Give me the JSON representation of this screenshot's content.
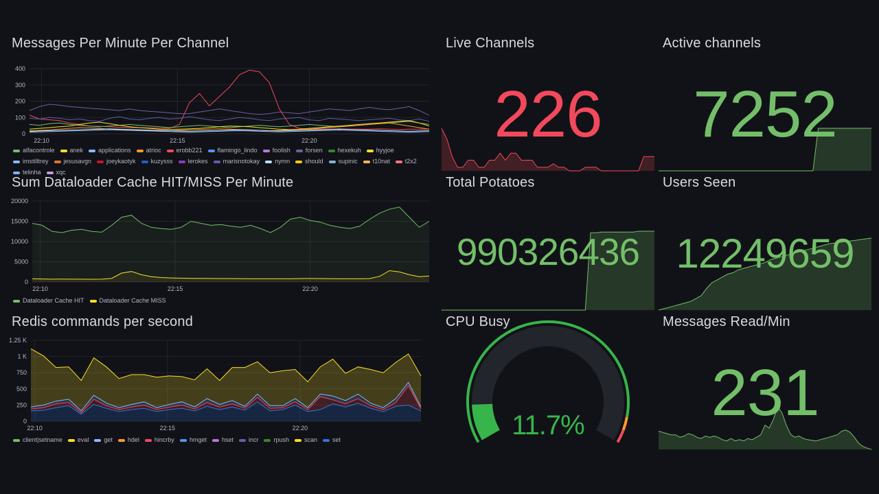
{
  "colors": {
    "background": "#111217",
    "grid": "#2a2c33",
    "red": "#f2495c",
    "green": "#73bf69",
    "yellow": "#fade2a",
    "orange": "#ff9830"
  },
  "panels": {
    "messages": {
      "title": "Messages Per Minute Per Channel",
      "legend": [
        {
          "name": "alfacontrole",
          "color": "#73bf69"
        },
        {
          "name": "anek",
          "color": "#fade2a"
        },
        {
          "name": "applications",
          "color": "#8ab8ff"
        },
        {
          "name": "atrioc",
          "color": "#ff9830"
        },
        {
          "name": "erobb221",
          "color": "#f2495c"
        },
        {
          "name": "flamingo_lindo",
          "color": "#5794f2"
        },
        {
          "name": "foolish",
          "color": "#b877d9"
        },
        {
          "name": "forsen",
          "color": "#705da0"
        },
        {
          "name": "hexekuh",
          "color": "#37872d"
        },
        {
          "name": "hyyjoe",
          "color": "#fade2a"
        },
        {
          "name": "imstilltrey",
          "color": "#8ab8ff"
        },
        {
          "name": "jesusavgn",
          "color": "#e0752d"
        },
        {
          "name": "joeykaotyk",
          "color": "#c4162a"
        },
        {
          "name": "kuzysss",
          "color": "#1f60c4"
        },
        {
          "name": "lerokes",
          "color": "#8f3bb8"
        },
        {
          "name": "marisnotokay",
          "color": "#5d5da8"
        },
        {
          "name": "nymn",
          "color": "#badff4"
        },
        {
          "name": "should",
          "color": "#f2cc0c"
        },
        {
          "name": "supinic",
          "color": "#7eb8d4"
        },
        {
          "name": "t10nat",
          "color": "#ffb357"
        },
        {
          "name": "t2x2",
          "color": "#ff7383"
        },
        {
          "name": "telinha",
          "color": "#73b9ff"
        },
        {
          "name": "xqc",
          "color": "#ca95e5"
        }
      ]
    },
    "dataloader": {
      "title": "Sum Dataloader Cache HIT/MISS Per Minute",
      "legend": [
        {
          "name": "Dataloader Cache HIT",
          "color": "#73bf69"
        },
        {
          "name": "Dataloader Cache MISS",
          "color": "#fade2a"
        }
      ]
    },
    "redis": {
      "title": "Redis commands per second",
      "legend": [
        {
          "name": "client|setname",
          "color": "#73bf69"
        },
        {
          "name": "eval",
          "color": "#fade2a"
        },
        {
          "name": "get",
          "color": "#8ab8ff"
        },
        {
          "name": "hdel",
          "color": "#ff9830"
        },
        {
          "name": "hincrby",
          "color": "#f2495c"
        },
        {
          "name": "hmget",
          "color": "#5794f2"
        },
        {
          "name": "hset",
          "color": "#b877d9"
        },
        {
          "name": "incr",
          "color": "#705da0"
        },
        {
          "name": "rpush",
          "color": "#37872d"
        },
        {
          "name": "scan",
          "color": "#fade2a"
        },
        {
          "name": "set",
          "color": "#3274d9"
        }
      ]
    },
    "live_channels": {
      "title": "Live Channels",
      "value": "226",
      "color": "#f2495c"
    },
    "active_channels": {
      "title": "Active channels",
      "value": "7252",
      "color": "#73bf69"
    },
    "total_potatoes": {
      "title": "Total Potatoes",
      "value": "990326436",
      "color": "#73bf69"
    },
    "users_seen": {
      "title": "Users Seen",
      "value": "12249659",
      "color": "#73bf69"
    },
    "cpu_busy": {
      "title": "CPU Busy",
      "value": "11.7%",
      "percent": 11.7,
      "color": "#37b54a"
    },
    "messages_read": {
      "title": "Messages Read/Min",
      "value": "231",
      "color": "#73bf69"
    }
  },
  "chart_data": [
    {
      "type": "line",
      "title": "Messages Per Minute Per Channel",
      "x_ticks": [
        "22:10",
        "22:15",
        "22:20"
      ],
      "y_ticks": [
        "0",
        "100",
        "200",
        "300",
        "400"
      ],
      "ylim": [
        0,
        420
      ],
      "series": [
        {
          "name": "erobb221",
          "color": "#f2495c",
          "values": [
            120,
            95,
            90,
            85,
            70,
            60,
            50,
            48,
            45,
            42,
            40,
            40,
            38,
            36,
            35,
            60,
            200,
            260,
            180,
            240,
            300,
            380,
            410,
            400,
            330,
            160,
            60,
            35,
            30,
            30,
            30,
            32,
            30,
            30,
            30,
            32,
            30,
            28,
            30,
            30,
            30
          ]
        },
        {
          "name": "forsen",
          "color": "#705da0",
          "values": [
            150,
            175,
            190,
            185,
            175,
            170,
            165,
            160,
            155,
            150,
            160,
            150,
            145,
            140,
            135,
            130,
            130,
            140,
            150,
            160,
            150,
            140,
            130,
            125,
            130,
            140,
            135,
            130,
            140,
            150,
            160,
            155,
            150,
            160,
            170,
            160,
            155,
            165,
            175,
            150,
            120
          ]
        },
        {
          "name": "marisnotokay",
          "color": "#5d5da8",
          "values": [
            100,
            95,
            105,
            100,
            90,
            95,
            85,
            80,
            100,
            110,
            95,
            90,
            100,
            105,
            95,
            100,
            110,
            100,
            90,
            85,
            95,
            105,
            100,
            90,
            85,
            95,
            100,
            105,
            90,
            85,
            100,
            95,
            90,
            85,
            90,
            95,
            100,
            90,
            85,
            95,
            80
          ]
        },
        {
          "name": "alfacontrole",
          "color": "#73bf69",
          "values": [
            60,
            55,
            65,
            70,
            60,
            55,
            50,
            45,
            50,
            55,
            60,
            55,
            50,
            45,
            40,
            45,
            50,
            55,
            50,
            45,
            40,
            45,
            50,
            55,
            50,
            45,
            50,
            55,
            60,
            55,
            50,
            45,
            50,
            55,
            60,
            65,
            70,
            75,
            80,
            70,
            60
          ]
        },
        {
          "name": "anek",
          "color": "#fade2a",
          "values": [
            30,
            35,
            40,
            45,
            50,
            60,
            70,
            75,
            65,
            55,
            45,
            40,
            35,
            30,
            28,
            30,
            32,
            35,
            40,
            45,
            50,
            48,
            45,
            40,
            35,
            30,
            28,
            30,
            35,
            40,
            45,
            50,
            55,
            60,
            65,
            70,
            75,
            80,
            85,
            70,
            50
          ]
        },
        {
          "name": "atrioc",
          "color": "#ff9830",
          "values": [
            20,
            22,
            25,
            30,
            35,
            40,
            38,
            35,
            30,
            28,
            25,
            22,
            20,
            18,
            20,
            22,
            25,
            28,
            30,
            32,
            30,
            28,
            25,
            22,
            20,
            22,
            25,
            28,
            30,
            35,
            40,
            45,
            50,
            55,
            60,
            65,
            70,
            60,
            50,
            40,
            30
          ]
        },
        {
          "name": "applications",
          "color": "#8ab8ff",
          "values": [
            10,
            12,
            14,
            16,
            18,
            20,
            22,
            24,
            26,
            24,
            22,
            20,
            18,
            16,
            14,
            12,
            10,
            12,
            14,
            16,
            18,
            20,
            18,
            16,
            14,
            12,
            14,
            16,
            18,
            20,
            22,
            24,
            22,
            20,
            18,
            16,
            14,
            12,
            10,
            12,
            14
          ]
        },
        {
          "name": "nymn",
          "color": "#badff4",
          "values": [
            15,
            18,
            20,
            22,
            24,
            26,
            28,
            30,
            32,
            30,
            28,
            26,
            24,
            22,
            20,
            18,
            16,
            18,
            20,
            22,
            24,
            26,
            24,
            22,
            20,
            18,
            20,
            22,
            24,
            26,
            28,
            30,
            28,
            26,
            24,
            22,
            20,
            18,
            16,
            18,
            20
          ]
        }
      ]
    },
    {
      "type": "area",
      "title": "Sum Dataloader Cache HIT/MISS Per Minute",
      "x_ticks": [
        "22:10",
        "22:15",
        "22:20"
      ],
      "y_ticks": [
        "0",
        "5000",
        "10000",
        "15000",
        "20000"
      ],
      "ylim": [
        0,
        20000
      ],
      "series": [
        {
          "name": "Dataloader Cache HIT",
          "color": "#73bf69",
          "values": [
            14500,
            14000,
            12500,
            12200,
            12800,
            13000,
            12500,
            12300,
            14000,
            16000,
            16500,
            14500,
            13500,
            13200,
            13000,
            13500,
            15000,
            14500,
            14000,
            14200,
            13800,
            13500,
            14000,
            13200,
            12200,
            13500,
            15500,
            16000,
            15200,
            14800,
            14000,
            13500,
            13200,
            13800,
            15500,
            17000,
            18000,
            18500,
            16000,
            13500,
            15000
          ]
        },
        {
          "name": "Dataloader Cache MISS",
          "color": "#fade2a",
          "values": [
            800,
            750,
            700,
            720,
            700,
            700,
            680,
            700,
            900,
            2200,
            2600,
            1800,
            1300,
            1100,
            1000,
            950,
            900,
            880,
            860,
            850,
            840,
            830,
            820,
            810,
            800,
            800,
            820,
            840,
            860,
            850,
            830,
            820,
            810,
            800,
            850,
            1400,
            2800,
            2500,
            1800,
            1300,
            1500
          ]
        }
      ]
    },
    {
      "type": "area",
      "title": "Redis commands per second",
      "x_ticks": [
        "22:10",
        "22:15",
        "22:20"
      ],
      "y_ticks": [
        "0",
        "250",
        "500",
        "750",
        "1 K",
        "1.25 K"
      ],
      "ylim": [
        0,
        1250
      ],
      "stacked": true,
      "series": [
        {
          "name": "set",
          "color": "#3274d9",
          "values": [
            160,
            170,
            210,
            240,
            110,
            260,
            200,
            150,
            180,
            200,
            150,
            180,
            200,
            160,
            230,
            180,
            220,
            170,
            300,
            160,
            180,
            250,
            150,
            180,
            270,
            220,
            280,
            200,
            150,
            230,
            250,
            160
          ]
        },
        {
          "name": "hincrby",
          "color": "#f2495c",
          "values": [
            30,
            40,
            60,
            50,
            20,
            80,
            40,
            30,
            40,
            50,
            30,
            40,
            50,
            30,
            60,
            40,
            50,
            30,
            70,
            40,
            30,
            50,
            30,
            200,
            60,
            50,
            70,
            40,
            30,
            60,
            300,
            30
          ]
        },
        {
          "name": "get",
          "color": "#8ab8ff",
          "values": [
            30,
            40,
            40,
            50,
            30,
            60,
            40,
            30,
            40,
            50,
            30,
            40,
            50,
            30,
            60,
            40,
            50,
            30,
            50,
            40,
            30,
            50,
            30,
            40,
            60,
            50,
            70,
            40,
            30,
            60,
            50,
            30
          ]
        },
        {
          "name": "eval",
          "color": "#fade2a",
          "values": [
            900,
            760,
            520,
            500,
            470,
            580,
            560,
            450,
            460,
            420,
            470,
            440,
            390,
            420,
            460,
            370,
            510,
            600,
            500,
            510,
            540,
            450,
            400,
            420,
            570,
            420,
            420,
            520,
            540,
            560,
            440,
            480
          ]
        }
      ]
    },
    {
      "type": "area",
      "title": "Live Channels",
      "series": [
        {
          "name": "",
          "values": [
            60,
            45,
            20,
            5,
            5,
            15,
            15,
            5,
            5,
            15,
            15,
            25,
            15,
            25,
            25,
            15,
            15,
            15,
            5,
            5,
            5,
            10,
            5,
            5,
            0,
            0,
            0,
            5,
            5,
            5,
            0,
            0,
            0,
            0,
            0,
            0,
            0,
            0,
            20,
            20,
            20
          ]
        }
      ]
    },
    {
      "type": "area",
      "title": "Active channels",
      "series": [
        {
          "name": "",
          "values": [
            0,
            0,
            0,
            0,
            0,
            0,
            0,
            0,
            0,
            0,
            0,
            0,
            0,
            0,
            0,
            0,
            0,
            0,
            0,
            0,
            0,
            0,
            0,
            0,
            0,
            0,
            0,
            0,
            0,
            0,
            95,
            95,
            95,
            95,
            95,
            95,
            95,
            95,
            95,
            95,
            95
          ]
        }
      ]
    },
    {
      "type": "area",
      "title": "Total Potatoes",
      "series": [
        {
          "name": "",
          "values": [
            0,
            0,
            0,
            0,
            0,
            0,
            0,
            0,
            0,
            0,
            0,
            0,
            0,
            0,
            0,
            0,
            0,
            0,
            0,
            0,
            0,
            0,
            0,
            0,
            0,
            0,
            0,
            0,
            98,
            98,
            99,
            99,
            99,
            99,
            99,
            99,
            99,
            100,
            100,
            100,
            100
          ]
        }
      ]
    },
    {
      "type": "area",
      "title": "Users Seen",
      "series": [
        {
          "name": "",
          "values": [
            0,
            2,
            4,
            6,
            8,
            10,
            12,
            16,
            20,
            30,
            38,
            42,
            46,
            50,
            52,
            56,
            58,
            60,
            62,
            64,
            66,
            70,
            72,
            74,
            76,
            78,
            80,
            82,
            84,
            86,
            88,
            90,
            92,
            93,
            94,
            95,
            96,
            97,
            98,
            99,
            100
          ]
        }
      ]
    },
    {
      "type": "area",
      "title": "Messages Read/Min",
      "series": [
        {
          "name": "",
          "values": [
            30,
            28,
            26,
            24,
            24,
            20,
            22,
            26,
            24,
            20,
            18,
            22,
            20,
            22,
            20,
            16,
            14,
            18,
            14,
            16,
            14,
            18,
            16,
            20,
            24,
            40,
            35,
            50,
            70,
            60,
            40,
            25,
            20,
            22,
            18,
            16,
            15,
            14,
            16,
            18,
            20,
            22,
            24,
            30,
            32,
            28,
            20,
            10,
            5,
            2,
            0
          ]
        }
      ]
    }
  ]
}
